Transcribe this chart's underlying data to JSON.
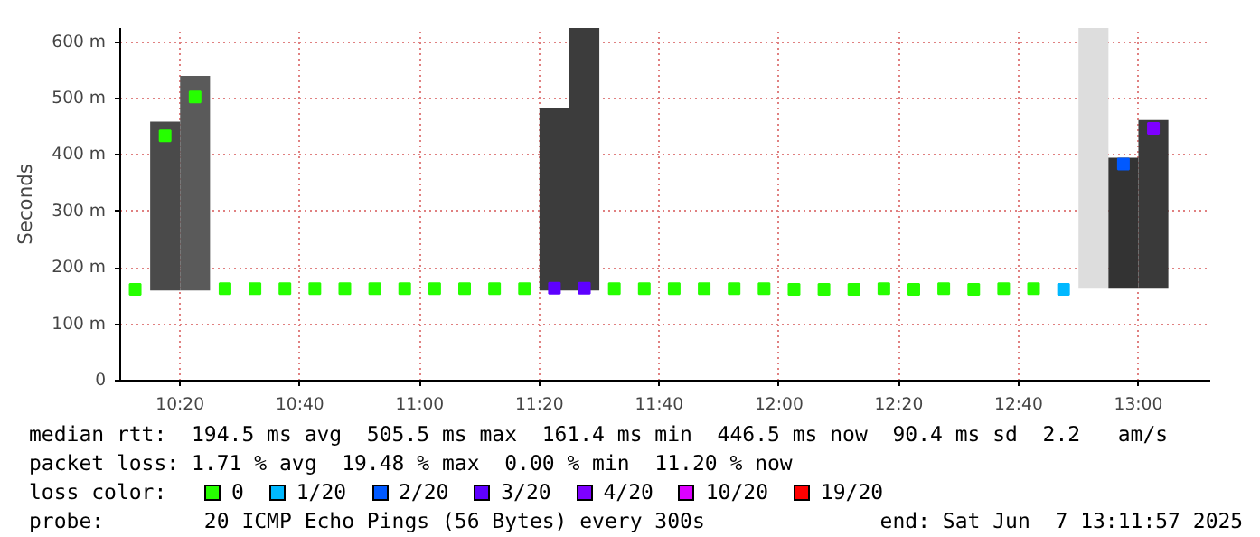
{
  "chart_data": {
    "type": "scatter",
    "marker": "square",
    "ylabel": "Seconds",
    "legend_title": "loss color:",
    "legend": "bottom",
    "grid": true,
    "x": [
      10.2083,
      10.2917,
      10.375,
      10.4583,
      10.5417,
      10.625,
      10.7083,
      10.7917,
      10.875,
      10.9583,
      11.0417,
      11.125,
      11.2083,
      11.2917,
      11.375,
      11.4583,
      11.5417,
      11.625,
      11.7083,
      11.7917,
      11.875,
      11.9583,
      12.0417,
      12.125,
      12.2083,
      12.2917,
      12.375,
      12.4583,
      12.5417,
      12.625,
      12.7083,
      12.7917,
      12.875,
      12.9583,
      13.0417
    ],
    "xlim": [
      10.1667,
      13.2
    ],
    "xticks": [
      {
        "value": 10.3333,
        "label": "10:20"
      },
      {
        "value": 10.6667,
        "label": "10:40"
      },
      {
        "value": 11,
        "label": "11:00"
      },
      {
        "value": 11.3333,
        "label": "11:20"
      },
      {
        "value": 11.6667,
        "label": "11:40"
      },
      {
        "value": 12,
        "label": "12:00"
      },
      {
        "value": 12.3333,
        "label": "12:20"
      },
      {
        "value": 12.6667,
        "label": "12:40"
      },
      {
        "value": 13,
        "label": "13:00"
      }
    ],
    "ylim": [
      0,
      625
    ],
    "yticks": [
      0,
      {
        "value": 100,
        "label": "100 m"
      },
      {
        "value": 200,
        "label": "200 m"
      },
      {
        "value": 300,
        "label": "300 m"
      },
      {
        "value": 400,
        "label": "400 m"
      },
      {
        "value": 500,
        "label": "500 m"
      },
      {
        "value": 600,
        "label": "600 m"
      }
    ],
    "series": [
      {
        "type": "bar",
        "color": "#4a4a4a",
        "colors": [
          null,
          "#4a4a4a",
          "#5a5a5a",
          null,
          null,
          null,
          null,
          null,
          null,
          null,
          null,
          null,
          null,
          null,
          "#3c3c3c",
          "#3c3c3c",
          null,
          null,
          null,
          null,
          null,
          null,
          null,
          null,
          null,
          null,
          null,
          null,
          null,
          null,
          null,
          null,
          "#dddddd",
          "#333333",
          "#3a3a3a"
        ],
        "base": [
          null,
          160,
          160,
          null,
          null,
          null,
          null,
          null,
          null,
          null,
          null,
          null,
          null,
          null,
          160,
          160,
          null,
          null,
          null,
          null,
          null,
          null,
          null,
          null,
          null,
          null,
          null,
          null,
          null,
          null,
          null,
          null,
          163,
          163,
          163
        ],
        "values": [
          null,
          299,
          380,
          null,
          null,
          null,
          null,
          null,
          null,
          null,
          null,
          null,
          null,
          null,
          324,
          465,
          null,
          null,
          null,
          null,
          null,
          null,
          null,
          null,
          null,
          null,
          null,
          null,
          null,
          null,
          null,
          null,
          462,
          232,
          299
        ]
      },
      {
        "name": "0",
        "color": "#26ff00",
        "values": [
          162,
          434,
          503,
          163,
          163,
          163,
          163,
          163,
          163,
          163,
          163,
          163,
          163,
          163,
          null,
          null,
          163,
          163,
          163,
          163,
          163,
          163,
          162,
          162,
          162,
          163,
          162,
          163,
          162,
          163,
          163,
          null,
          null,
          null,
          null
        ]
      },
      {
        "name": "1/20",
        "color": "#00b8ff",
        "values": [
          null,
          null,
          null,
          null,
          null,
          null,
          null,
          null,
          null,
          null,
          null,
          null,
          null,
          null,
          null,
          null,
          null,
          null,
          null,
          null,
          null,
          null,
          null,
          null,
          null,
          null,
          null,
          null,
          null,
          null,
          null,
          162,
          null,
          null,
          null
        ]
      },
      {
        "name": "2/20",
        "color": "#0059ff",
        "values": [
          null,
          null,
          null,
          null,
          null,
          null,
          null,
          null,
          null,
          null,
          null,
          null,
          null,
          null,
          null,
          null,
          null,
          null,
          null,
          null,
          null,
          null,
          null,
          null,
          null,
          null,
          null,
          null,
          null,
          null,
          null,
          null,
          null,
          384,
          null
        ]
      },
      {
        "name": "3/20",
        "color": "#5e00ff",
        "values": [
          null,
          null,
          null,
          null,
          null,
          null,
          null,
          null,
          null,
          null,
          null,
          null,
          null,
          null,
          164,
          164,
          null,
          null,
          null,
          null,
          null,
          null,
          null,
          null,
          null,
          null,
          null,
          null,
          null,
          null,
          null,
          null,
          null,
          null,
          null
        ]
      },
      {
        "name": "4/20",
        "color": "#7e00ff",
        "values": [
          null,
          null,
          null,
          null,
          null,
          null,
          null,
          null,
          null,
          null,
          null,
          null,
          null,
          null,
          null,
          null,
          null,
          null,
          null,
          null,
          null,
          null,
          null,
          null,
          null,
          null,
          null,
          null,
          null,
          null,
          null,
          null,
          null,
          null,
          447
        ]
      },
      {
        "name": "10/20",
        "color": "#dd00ff",
        "values": [
          null,
          null,
          null,
          null,
          null,
          null,
          null,
          null,
          null,
          null,
          null,
          null,
          null,
          null,
          null,
          null,
          null,
          null,
          null,
          null,
          null,
          null,
          null,
          null,
          null,
          null,
          null,
          null,
          null,
          null,
          null,
          null,
          null,
          null,
          null
        ]
      },
      {
        "name": "19/20",
        "color": "#ff0000",
        "values": [
          null,
          null,
          null,
          null,
          null,
          null,
          null,
          null,
          null,
          null,
          null,
          null,
          null,
          null,
          null,
          null,
          null,
          null,
          null,
          null,
          null,
          null,
          null,
          null,
          null,
          null,
          null,
          null,
          null,
          null,
          null,
          null,
          null,
          null,
          null
        ]
      }
    ],
    "annotations": [
      "median rtt:  194.5 ms avg  505.5 ms max  161.4 ms min  446.5 ms now  90.4 ms sd  2.2   am/s",
      "packet loss: 1.71 % avg  19.48 % max  0.00 % min  11.20 % now",
      "probe:        20 ICMP Echo Pings (56 Bytes) every 300s              end: Sat Jun  7 13:11:57 2025"
    ]
  }
}
